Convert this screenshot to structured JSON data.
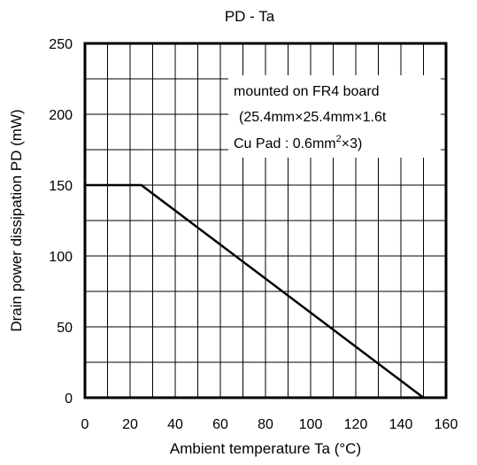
{
  "chart_data": {
    "type": "line",
    "title": "PD - Ta",
    "xlabel": "Ambient temperature  Ta (°C)",
    "ylabel": "Drain power dissipation  PD (mW)",
    "xlim": [
      0,
      160
    ],
    "ylim": [
      0,
      250
    ],
    "x_ticks": [
      "0",
      "20",
      "40",
      "60",
      "80",
      "100",
      "120",
      "140",
      "160"
    ],
    "y_ticks": [
      "0",
      "50",
      "100",
      "150",
      "200",
      "250"
    ],
    "x_minor_step": 10,
    "y_minor_step": 25,
    "grid": true,
    "series": [
      {
        "x": [
          0,
          25,
          150
        ],
        "y": [
          150,
          150,
          0
        ],
        "color": "#000000"
      }
    ],
    "annotation": {
      "line1": "mounted on FR4 board",
      "line2": "(25.4mm×25.4mm×1.6t",
      "line3_prefix": "Cu Pad : 0.6mm",
      "line3_sup": "2",
      "line3_suffix": "×3)"
    }
  }
}
